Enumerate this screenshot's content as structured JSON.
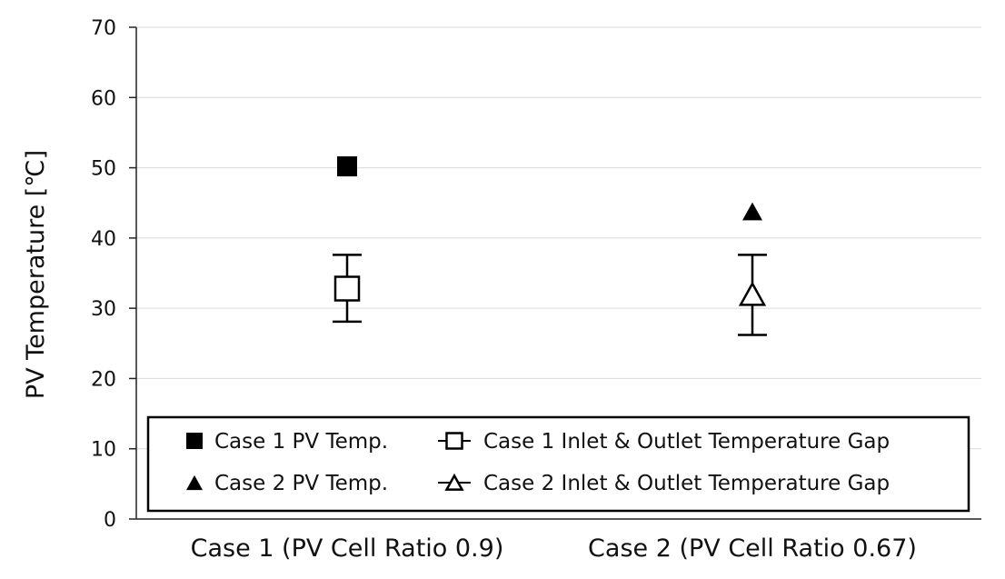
{
  "chart_data": {
    "type": "scatter",
    "title": "",
    "xlabel": "",
    "ylabel": "PV Temperature [℃]",
    "ylim": [
      0,
      70
    ],
    "yticks": [
      0,
      10,
      20,
      30,
      40,
      50,
      60,
      70
    ],
    "ytick_labels": [
      "0",
      "10",
      "20",
      "30",
      "40",
      "50",
      "60",
      "70"
    ],
    "grid": true,
    "categories": [
      "Case 1 (PV Cell Ratio 0.9)",
      "Case 2 (PV Cell Ratio 0.67)"
    ],
    "series": [
      {
        "name": "Case 1 PV Temp.",
        "marker": "filled-square",
        "points": [
          {
            "category": 0,
            "value": 50.2
          }
        ]
      },
      {
        "name": "Case 2 PV Temp.",
        "marker": "filled-triangle",
        "points": [
          {
            "category": 1,
            "value": 43.8
          }
        ]
      },
      {
        "name": "Case 1 Inlet & Outlet Temperature Gap",
        "marker": "open-square",
        "points": [
          {
            "category": 0,
            "value": 32.8,
            "low": 28.1,
            "high": 37.6
          }
        ]
      },
      {
        "name": "Case 2 Inlet & Outlet Temperature Gap",
        "marker": "open-triangle",
        "points": [
          {
            "category": 1,
            "value": 32.0,
            "low": 26.2,
            "high": 37.6
          }
        ]
      }
    ],
    "legend": {
      "position": "bottom-inside",
      "entries": [
        "Case 1 PV Temp.",
        "Case 1 Inlet & Outlet Temperature Gap",
        "Case 2 PV Temp.",
        "Case 2 Inlet & Outlet Temperature Gap"
      ]
    }
  }
}
